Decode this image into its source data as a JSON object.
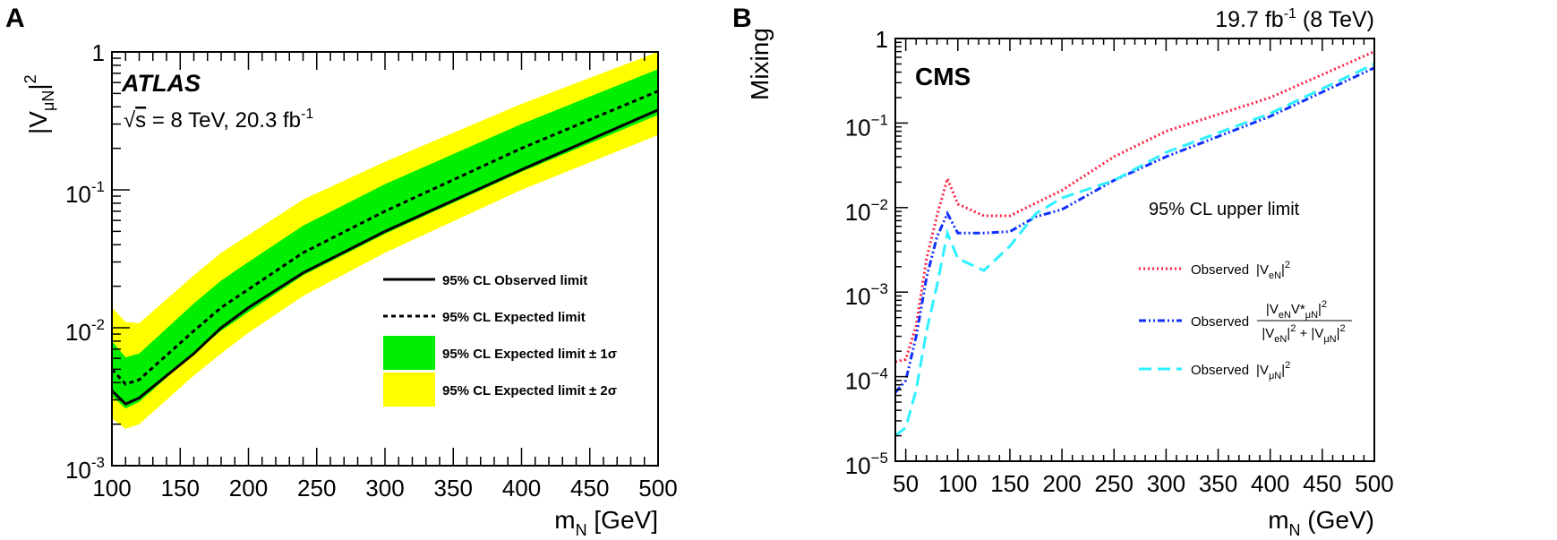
{
  "chart_data": [
    {
      "panel_label": "A",
      "type": "line",
      "experiment": "ATLAS",
      "annotation": {
        "sqrt_s": "s",
        "text": " = 8 TeV, 20.3 fb",
        "sup": "-1"
      },
      "xlabel": {
        "main": "m",
        "sub": "N",
        "rest": " [GeV]"
      },
      "ylabel": {
        "main": "|V",
        "sub": "μN",
        "rest": "|",
        "sup": "2"
      },
      "xlim": [
        100,
        500
      ],
      "ylim": [
        0.001,
        1
      ],
      "yscale": "log",
      "xticks": [
        100,
        150,
        200,
        250,
        300,
        350,
        400,
        450,
        500
      ],
      "yticks": [
        {
          "base": "1",
          "exp": ""
        },
        {
          "base": "10",
          "exp": "-1"
        },
        {
          "base": "10",
          "exp": "-2"
        },
        {
          "base": "10",
          "exp": "-3"
        }
      ],
      "legend_position": "bottom-right",
      "x": [
        100,
        110,
        120,
        160,
        180,
        200,
        240,
        300,
        400,
        500
      ],
      "series": [
        {
          "name": "95% CL Observed limit",
          "style": "solid",
          "color": "#000000",
          "values": [
            0.0035,
            0.0028,
            0.0031,
            0.0065,
            0.01,
            0.014,
            0.025,
            0.05,
            0.14,
            0.38
          ]
        },
        {
          "name": "95% CL Expected limit",
          "style": "dotted",
          "color": "#000000",
          "values": [
            0.005,
            0.0039,
            0.0042,
            0.0095,
            0.014,
            0.019,
            0.035,
            0.07,
            0.2,
            0.52
          ]
        }
      ],
      "bands": [
        {
          "name": "95% CL Expected limit ± 2σ",
          "color": "#ffff00",
          "lower": [
            0.0022,
            0.00185,
            0.002,
            0.0045,
            0.0065,
            0.0092,
            0.017,
            0.035,
            0.1,
            0.25
          ],
          "upper": [
            0.014,
            0.011,
            0.0108,
            0.024,
            0.035,
            0.047,
            0.085,
            0.16,
            0.42,
            1.0
          ]
        },
        {
          "name": "95% CL Expected limit ± 1σ",
          "color": "#00ee00",
          "lower": [
            0.0032,
            0.0026,
            0.0029,
            0.0065,
            0.0095,
            0.013,
            0.024,
            0.048,
            0.135,
            0.35
          ],
          "upper": [
            0.008,
            0.0061,
            0.0065,
            0.015,
            0.022,
            0.03,
            0.055,
            0.11,
            0.3,
            0.75
          ]
        }
      ],
      "legend": [
        {
          "label": "95% CL Observed limit",
          "kind": "solid"
        },
        {
          "label": "95% CL Expected limit",
          "kind": "dotted"
        },
        {
          "label": "95% CL Expected limit ± 1σ",
          "kind": "green"
        },
        {
          "label": "95% CL Expected limit ± 2σ",
          "kind": "yellow"
        }
      ]
    },
    {
      "panel_label": "B",
      "type": "line",
      "experiment": "CMS",
      "lumi": {
        "text": "19.7 fb",
        "sup": "-1",
        "rest": " (8 TeV)"
      },
      "annotation": "95% CL upper limit",
      "xlabel": {
        "main": "m",
        "sub": "N",
        "rest": " (GeV)"
      },
      "ylabel": "Mixing",
      "xlim": [
        40,
        500
      ],
      "ylim": [
        1e-05,
        1
      ],
      "yscale": "log",
      "xticks": [
        50,
        100,
        150,
        200,
        250,
        300,
        350,
        400,
        450,
        500
      ],
      "yticks": [
        {
          "base": "1",
          "exp": ""
        },
        {
          "base": "10",
          "exp": "−1"
        },
        {
          "base": "10",
          "exp": "−2"
        },
        {
          "base": "10",
          "exp": "−3"
        },
        {
          "base": "10",
          "exp": "−4"
        },
        {
          "base": "10",
          "exp": "−5"
        }
      ],
      "legend_position": "right",
      "series": [
        {
          "name": "Observed |VeN|^2",
          "color": "#ff2040",
          "style": "dotted",
          "x": [
            40,
            50,
            60,
            70,
            80,
            90,
            100,
            125,
            150,
            200,
            250,
            300,
            400,
            500
          ],
          "values": [
            0.00015,
            0.00016,
            0.0004,
            0.0025,
            0.008,
            0.022,
            0.011,
            0.008,
            0.008,
            0.016,
            0.04,
            0.08,
            0.2,
            0.7
          ]
        },
        {
          "name": "Observed |VeN V*μN|^2 / (|VeN|^2 + |VμN|^2)",
          "color": "#1030ff",
          "style": "dash-dot-dot",
          "x": [
            40,
            50,
            60,
            70,
            80,
            90,
            100,
            125,
            150,
            175,
            200,
            250,
            300,
            400,
            500
          ],
          "values": [
            6.5e-05,
            9e-05,
            0.0003,
            0.0015,
            0.0045,
            0.0085,
            0.005,
            0.005,
            0.0052,
            0.0078,
            0.0095,
            0.021,
            0.04,
            0.12,
            0.45
          ]
        },
        {
          "name": "Observed |VμN|^2",
          "color": "#30f0ff",
          "style": "dashed",
          "x": [
            40,
            50,
            60,
            70,
            80,
            90,
            100,
            125,
            150,
            175,
            200,
            250,
            300,
            400,
            500
          ],
          "values": [
            2e-05,
            2.5e-05,
            7e-05,
            0.00035,
            0.0012,
            0.005,
            0.0025,
            0.0018,
            0.0035,
            0.0085,
            0.013,
            0.021,
            0.045,
            0.13,
            0.5
          ]
        }
      ],
      "legend": [
        {
          "word": "Observed",
          "pre": "|V",
          "sub": "eN",
          "post": "|",
          "sup": "2"
        },
        {
          "word": "Observed",
          "num": {
            "pre": "|V",
            "sub1": "eN",
            "mid": "V*",
            "sub2": "μN",
            "post": "|",
            "sup": "2"
          },
          "den": {
            "a": "|V",
            "asub": "eN",
            "b": "|",
            "bsup": "2",
            "plus": " + |V",
            "csub": "μN",
            "d": "|",
            "dsup": "2"
          }
        },
        {
          "word": "Observed",
          "pre": "|V",
          "sub": "μN",
          "post": "|",
          "sup": "2"
        }
      ]
    }
  ]
}
